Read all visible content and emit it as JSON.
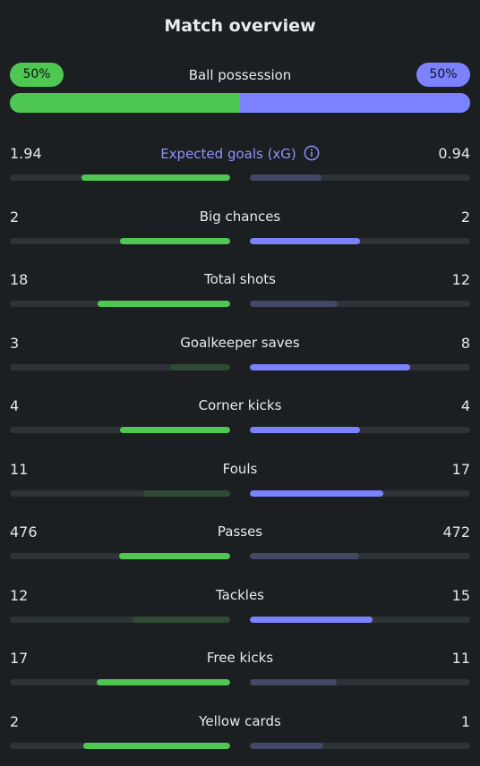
{
  "header": {
    "title": "Match overview"
  },
  "possession": {
    "label": "Ball possession",
    "home": "50%",
    "away": "50%",
    "home_share": 0.5
  },
  "colors": {
    "home": "#4fc753",
    "home_weak": "#2f4a35",
    "away": "#7c82ff",
    "away_weak": "#424866",
    "accent_text": "#8f94ff",
    "track": "#2e3337",
    "background": "#1b1f22"
  },
  "stats": [
    {
      "key": "xg",
      "label": "Expected goals (xG)",
      "home": "1.94",
      "away": "0.94",
      "home_num": 1.94,
      "away_num": 0.94,
      "accent": true,
      "info_icon": "info-icon"
    },
    {
      "key": "big-chances",
      "label": "Big chances",
      "home": "2",
      "away": "2",
      "home_num": 2,
      "away_num": 2
    },
    {
      "key": "total-shots",
      "label": "Total shots",
      "home": "18",
      "away": "12",
      "home_num": 18,
      "away_num": 12
    },
    {
      "key": "goalkeeper-saves",
      "label": "Goalkeeper saves",
      "home": "3",
      "away": "8",
      "home_num": 3,
      "away_num": 8
    },
    {
      "key": "corner-kicks",
      "label": "Corner kicks",
      "home": "4",
      "away": "4",
      "home_num": 4,
      "away_num": 4
    },
    {
      "key": "fouls",
      "label": "Fouls",
      "home": "11",
      "away": "17",
      "home_num": 11,
      "away_num": 17
    },
    {
      "key": "passes",
      "label": "Passes",
      "home": "476",
      "away": "472",
      "home_num": 476,
      "away_num": 472
    },
    {
      "key": "tackles",
      "label": "Tackles",
      "home": "12",
      "away": "15",
      "home_num": 12,
      "away_num": 15
    },
    {
      "key": "free-kicks",
      "label": "Free kicks",
      "home": "17",
      "away": "11",
      "home_num": 17,
      "away_num": 11
    },
    {
      "key": "yellow-cards",
      "label": "Yellow cards",
      "home": "2",
      "away": "1",
      "home_num": 2,
      "away_num": 1
    }
  ]
}
